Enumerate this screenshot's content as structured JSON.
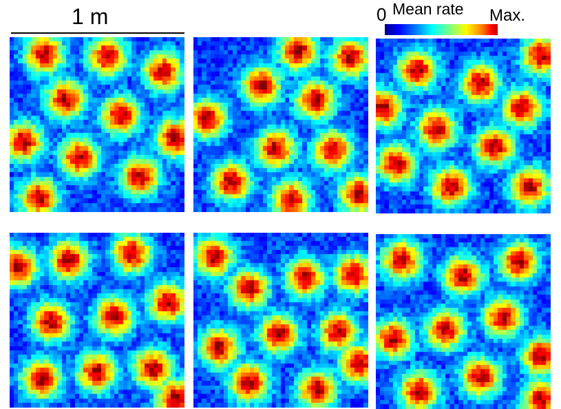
{
  "scale_bar": {
    "label": "1 m"
  },
  "colorbar": {
    "min_label": "0",
    "title": "Mean rate",
    "max_label": "Max.",
    "colormap": "jet"
  },
  "panels": [
    {
      "name": "panel-1",
      "fields": [
        [
          0.56,
          0.11
        ],
        [
          0.32,
          0.36
        ],
        [
          0.64,
          0.45
        ],
        [
          0.4,
          0.69
        ],
        [
          0.75,
          0.8
        ],
        [
          0.08,
          0.6
        ],
        [
          0.88,
          0.2
        ],
        [
          0.17,
          0.92
        ],
        [
          0.95,
          0.58
        ],
        [
          0.2,
          0.1
        ]
      ]
    },
    {
      "name": "panel-2",
      "fields": [
        [
          0.39,
          0.28
        ],
        [
          0.7,
          0.36
        ],
        [
          0.47,
          0.64
        ],
        [
          0.08,
          0.47
        ],
        [
          0.22,
          0.83
        ],
        [
          0.8,
          0.65
        ],
        [
          0.9,
          0.12
        ],
        [
          0.56,
          0.93
        ],
        [
          0.6,
          0.08
        ],
        [
          0.95,
          0.9
        ]
      ]
    },
    {
      "name": "panel-3",
      "fields": [
        [
          0.24,
          0.18
        ],
        [
          0.6,
          0.26
        ],
        [
          0.35,
          0.52
        ],
        [
          0.84,
          0.4
        ],
        [
          0.12,
          0.72
        ],
        [
          0.68,
          0.62
        ],
        [
          0.43,
          0.85
        ],
        [
          0.88,
          0.85
        ],
        [
          0.04,
          0.4
        ],
        [
          0.95,
          0.1
        ]
      ]
    },
    {
      "name": "panel-4",
      "fields": [
        [
          0.34,
          0.16
        ],
        [
          0.7,
          0.12
        ],
        [
          0.24,
          0.51
        ],
        [
          0.6,
          0.48
        ],
        [
          0.91,
          0.4
        ],
        [
          0.18,
          0.84
        ],
        [
          0.5,
          0.8
        ],
        [
          0.82,
          0.78
        ],
        [
          0.05,
          0.2
        ],
        [
          0.95,
          0.95
        ]
      ]
    },
    {
      "name": "panel-5",
      "fields": [
        [
          0.12,
          0.14
        ],
        [
          0.32,
          0.32
        ],
        [
          0.64,
          0.26
        ],
        [
          0.92,
          0.24
        ],
        [
          0.15,
          0.66
        ],
        [
          0.49,
          0.58
        ],
        [
          0.83,
          0.57
        ],
        [
          0.32,
          0.86
        ],
        [
          0.71,
          0.9
        ],
        [
          0.95,
          0.75
        ]
      ]
    },
    {
      "name": "panel-6",
      "fields": [
        [
          0.15,
          0.15
        ],
        [
          0.5,
          0.24
        ],
        [
          0.82,
          0.16
        ],
        [
          0.1,
          0.6
        ],
        [
          0.4,
          0.55
        ],
        [
          0.73,
          0.48
        ],
        [
          0.25,
          0.9
        ],
        [
          0.6,
          0.82
        ],
        [
          0.95,
          0.7
        ],
        [
          0.95,
          0.95
        ]
      ]
    }
  ]
}
